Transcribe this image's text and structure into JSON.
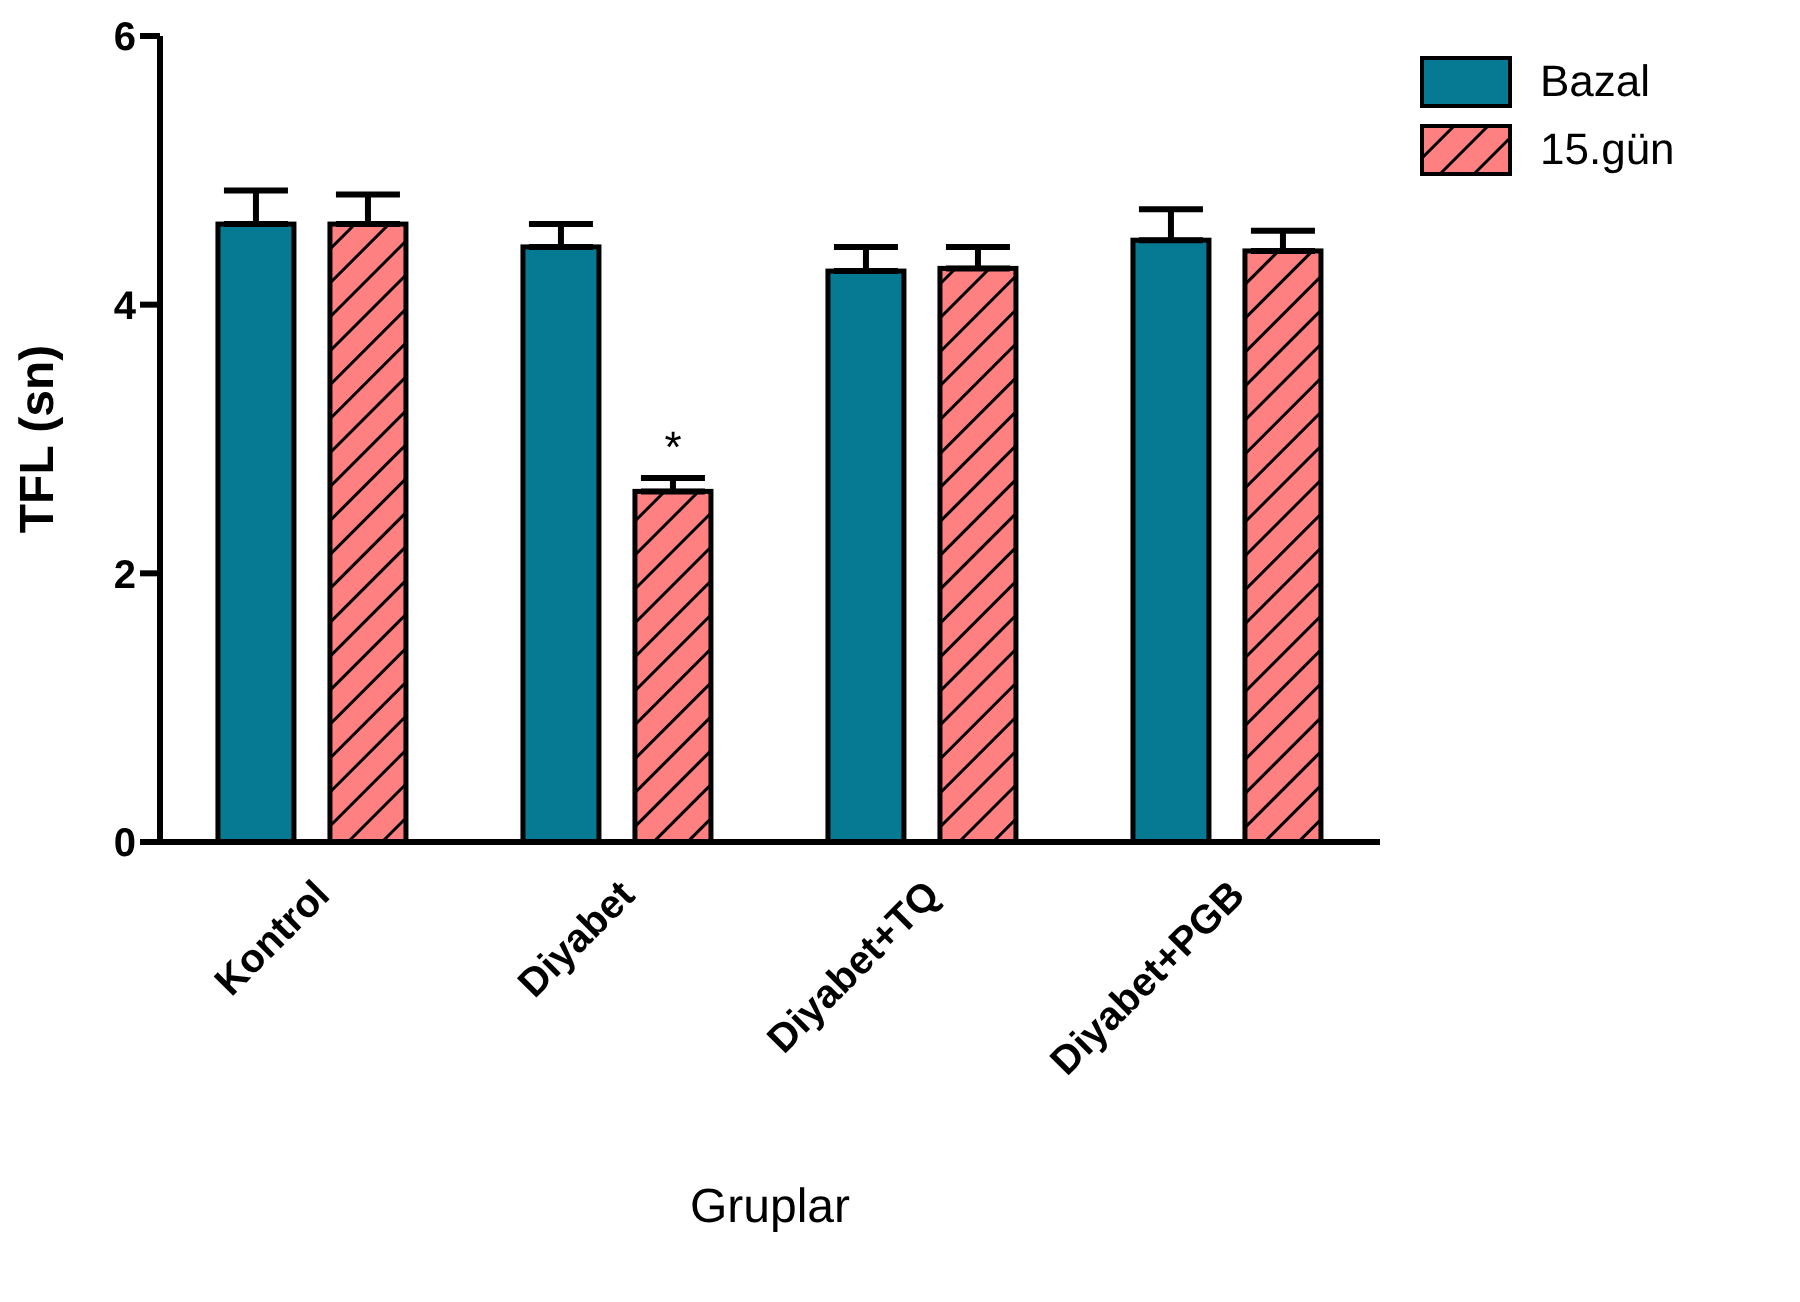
{
  "chart_data": {
    "type": "bar",
    "xlabel": "Gruplar",
    "ylabel": "TFL (sn)",
    "categories": [
      "Kontrol",
      "Diyabet",
      "Diyabet+TQ",
      "Diyabet+PGB"
    ],
    "series": [
      {
        "name": "Bazal",
        "color": "#067a92",
        "values": [
          4.6,
          4.43,
          4.25,
          4.48
        ],
        "errors": [
          [
            4.6,
            4.85
          ],
          [
            4.43,
            4.6
          ],
          [
            4.25,
            4.43
          ],
          [
            4.48,
            4.71
          ]
        ]
      },
      {
        "name": "15.gün",
        "color": "#ff8080",
        "values": [
          4.6,
          2.61,
          4.27,
          4.4
        ],
        "errors": [
          [
            4.6,
            4.82
          ],
          [
            2.61,
            2.71
          ],
          [
            4.27,
            4.43
          ],
          [
            4.4,
            4.55
          ]
        ]
      }
    ],
    "ylim": [
      0,
      6
    ],
    "yticks": [
      0,
      2,
      4,
      6
    ],
    "grid": false,
    "legend": "top right",
    "annotations": [
      {
        "text": "*",
        "x": "Diyabet",
        "y": 2.61
      }
    ]
  }
}
